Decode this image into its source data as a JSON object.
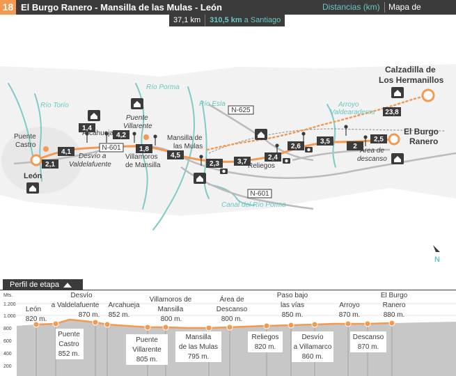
{
  "header": {
    "stage_number": "18",
    "title": "El Burgo Ranero - Mansilla de las Mulas - León",
    "distances_button": "Distancias (km)",
    "map_button": "Mapa de situación"
  },
  "distance": {
    "stage_km": "37,1 km",
    "to_santiago_km": "310,5 km",
    "to_santiago_suffix": " a Santiago"
  },
  "map": {
    "places": {
      "leon": "León",
      "puente_castro": [
        "Puente",
        "Castro"
      ],
      "desvio_valdelafuente": [
        "Desvío a",
        "Valdelafuente"
      ],
      "arcahueja": "Arcahueja",
      "puente_villarente": [
        "Puente",
        "Villarente"
      ],
      "villamoros": [
        "Villamoros",
        "de Mansilla"
      ],
      "mansilla": [
        "Mansilla de",
        "las Mulas"
      ],
      "reliegos": "Reliegos",
      "area_descanso": [
        "Área de",
        "descanso"
      ],
      "el_burgo_ranero": [
        "El Burgo",
        "Ranero"
      ],
      "calzadilla": [
        "Calzadilla de",
        "Los Hermanillos"
      ]
    },
    "rivers": {
      "torio": "Río Torío",
      "porma": "Río Porma",
      "esla": "Río Esla",
      "valdearaderos": [
        "Arroyo",
        "Valdearaderos"
      ],
      "canal": "Canal del Río Porma"
    },
    "roads": {
      "n601_a": "N-601",
      "n625": "N-625",
      "n601_b": "N-601"
    },
    "segments": [
      "2,1",
      "4,1",
      "1,4",
      "4,2",
      "1,8",
      "4,5",
      "2,3",
      "3,7",
      "2,4",
      "2,6",
      "3,5",
      "2",
      "2,5",
      "23,8"
    ],
    "north": "N",
    "colors": {
      "route": "#f39a50",
      "river": "#7ecbc6",
      "road": "#bbbbbb",
      "label_dark": "#3b3b3b"
    }
  },
  "profile": {
    "tab_label": "Perfil de etapa",
    "y_axis_unit": "Mts.",
    "y_ticks": [
      "1.200",
      "1.000",
      "800",
      "600",
      "400",
      "200"
    ],
    "top_labels": [
      {
        "name": [
          "León"
        ],
        "alt": "820 m."
      },
      {
        "name": [
          "Desvío",
          "a Valdelafuente"
        ],
        "alt": "870 m."
      },
      {
        "name": [
          "Arcahueja"
        ],
        "alt": "852 m."
      },
      {
        "name": [
          "Villamoros de",
          "Mansilla"
        ],
        "alt": "800 m."
      },
      {
        "name": [
          "Área de",
          "Descanso"
        ],
        "alt": "800 m."
      },
      {
        "name": [
          "Paso bajo",
          "las vías"
        ],
        "alt": "850 m."
      },
      {
        "name": [
          "Arroyo"
        ],
        "alt": "870 m."
      },
      {
        "name": [
          "El Burgo",
          "Ranero"
        ],
        "alt": "880 m."
      }
    ],
    "bottom_labels": [
      {
        "name": [
          "Puente",
          "Castro"
        ],
        "alt": "852 m."
      },
      {
        "name": [
          "Puente",
          "Villarente"
        ],
        "alt": "805 m."
      },
      {
        "name": [
          "Mansilla",
          "de las Mulas"
        ],
        "alt": "795 m."
      },
      {
        "name": [
          "Reliegos"
        ],
        "alt": "820 m."
      },
      {
        "name": [
          "Desvío",
          "a Villamarco"
        ],
        "alt": "860 m."
      },
      {
        "name": [
          "Descanso"
        ],
        "alt": "870 m."
      }
    ]
  }
}
